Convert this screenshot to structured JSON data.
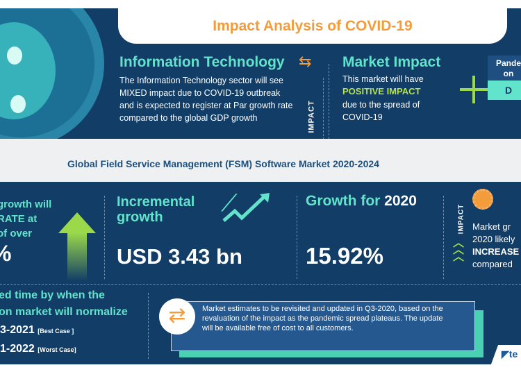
{
  "header": {
    "title": "Impact Analysis of COVID-19"
  },
  "sector": {
    "title": "Information Technology",
    "text": "The Information Technology sector will see MIXED impact due to COVID-19 outbreak and is expected to register at Par growth rate compared to the global GDP growth"
  },
  "impact_label": "IMPACT",
  "market_impact": {
    "title": "Market Impact",
    "line1": "This market will have",
    "highlight": "POSITIVE IMPACT",
    "line2": "due to the spread of COVID-19"
  },
  "pandemic_box": {
    "line1": "Pande",
    "line2": "on",
    "value": "D"
  },
  "band_title": "Global Field Service Management (FSM) Software Market 2020-2024",
  "cagr": {
    "line1": "growth will",
    "line2": "RATE at",
    "line3": "of over",
    "value": "%"
  },
  "incremental": {
    "title_line1": "Incremental",
    "title_line2": "growth",
    "value": "USD 3.43 bn"
  },
  "growth2020": {
    "title": "Growth for",
    "year": "2020",
    "value": "15.92%"
  },
  "impact_right": {
    "label": "IMPACT",
    "line1": "Market gr",
    "line2": "2020 likely",
    "highlight": "INCREASE",
    "line3": "compared"
  },
  "normalize": {
    "line1": "ed time by when the",
    "line2": "on market will normalize",
    "best": "3-2021",
    "best_label": "[Best Case ]",
    "worst": "1-2022",
    "worst_label": "[Worst Case]"
  },
  "note": "Market estimates to be revisited and updated in Q3-2020, based on the revaluation of the impact as the pandemic spread plateaus. The update will be available free of cost to all customers.",
  "logo": "te",
  "colors": {
    "navy": "#123d66",
    "teal": "#62e3cb",
    "orange": "#f39c3c",
    "green": "#9bd94a"
  }
}
